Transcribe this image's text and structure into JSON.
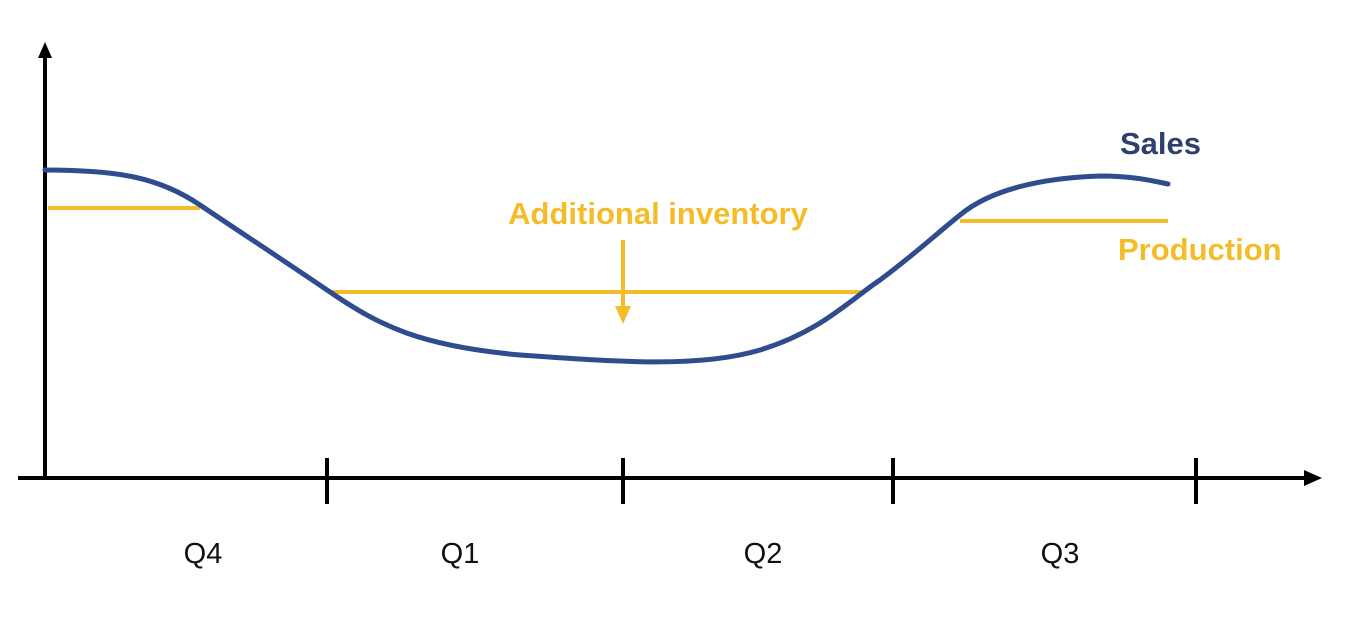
{
  "labels": {
    "sales": "Sales",
    "production": "Production",
    "additional_inventory": "Additional inventory"
  },
  "x_axis": {
    "quarters": [
      "Q4",
      "Q1",
      "Q2",
      "Q3"
    ]
  }
}
